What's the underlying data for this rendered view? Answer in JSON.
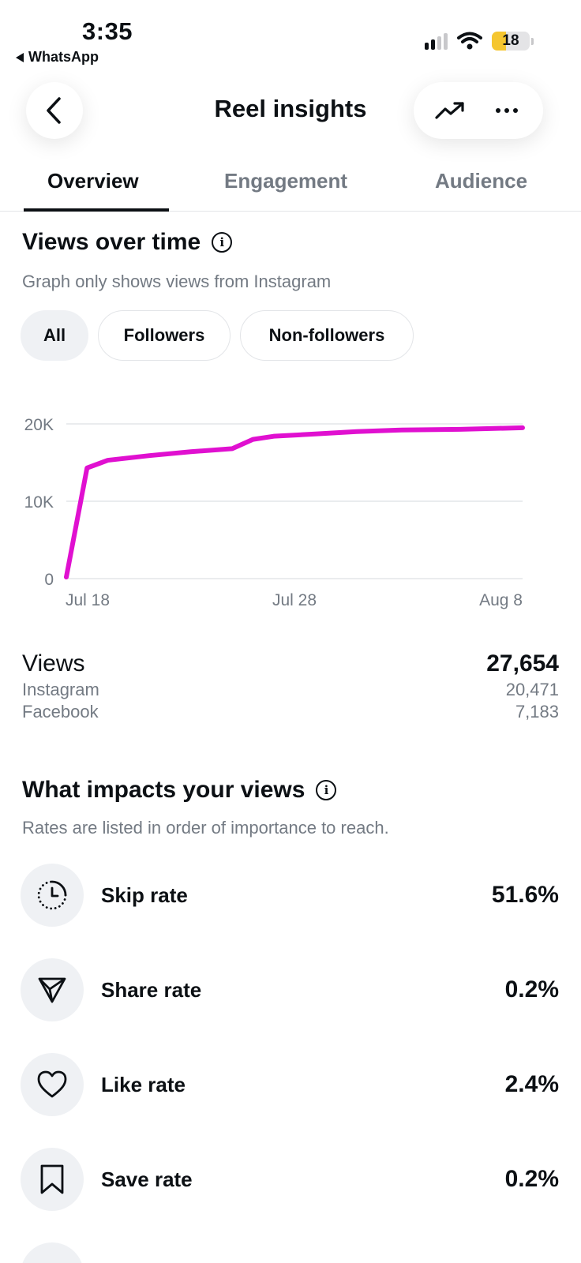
{
  "status_bar": {
    "time": "3:35",
    "back_app": "WhatsApp",
    "battery": "18"
  },
  "header": {
    "title": "Reel insights"
  },
  "tabs": [
    {
      "label": "Overview",
      "active": true
    },
    {
      "label": "Engagement",
      "active": false
    },
    {
      "label": "Audience",
      "active": false
    }
  ],
  "views_section": {
    "title": "Views over time",
    "subtitle": "Graph only shows views from Instagram",
    "filters": [
      {
        "label": "All",
        "active": true
      },
      {
        "label": "Followers",
        "active": false
      },
      {
        "label": "Non-followers",
        "active": false
      }
    ]
  },
  "chart_data": {
    "type": "line",
    "x_tick_labels": [
      "Jul 18",
      "Jul 28",
      "Aug 8"
    ],
    "y_tick_labels": [
      "0",
      "10K",
      "20K"
    ],
    "ylim": [
      0,
      20000
    ],
    "grid": true,
    "series": [
      {
        "color": "#e010d0",
        "points": [
          {
            "x": "Jul 17",
            "y": 200
          },
          {
            "x": "Jul 18",
            "y": 14300
          },
          {
            "x": "Jul 19",
            "y": 15300
          },
          {
            "x": "Jul 21",
            "y": 15900
          },
          {
            "x": "Jul 23",
            "y": 16400
          },
          {
            "x": "Jul 25",
            "y": 16800
          },
          {
            "x": "Jul 26",
            "y": 18000
          },
          {
            "x": "Jul 27",
            "y": 18400
          },
          {
            "x": "Jul 29",
            "y": 18700
          },
          {
            "x": "Jul 31",
            "y": 19000
          },
          {
            "x": "Aug 2",
            "y": 19200
          },
          {
            "x": "Aug 5",
            "y": 19300
          },
          {
            "x": "Aug 8",
            "y": 19500
          }
        ]
      }
    ]
  },
  "views_summary": {
    "label": "Views",
    "total": "27,654",
    "breakdown": [
      {
        "label": "Instagram",
        "value": "20,471"
      },
      {
        "label": "Facebook",
        "value": "7,183"
      }
    ]
  },
  "impacts_section": {
    "title": "What impacts your views",
    "subtitle": "Rates are listed in order of importance to reach.",
    "metrics": [
      {
        "icon": "clock-icon",
        "label": "Skip rate",
        "value": "51.6%"
      },
      {
        "icon": "share-icon",
        "label": "Share rate",
        "value": "0.2%"
      },
      {
        "icon": "heart-icon",
        "label": "Like rate",
        "value": "2.4%"
      },
      {
        "icon": "bookmark-icon",
        "label": "Save rate",
        "value": "0.2%"
      }
    ]
  },
  "colors": {
    "accent_line": "#e010d0",
    "muted_text": "#737a83",
    "chip_active_bg": "#eff1f4"
  }
}
